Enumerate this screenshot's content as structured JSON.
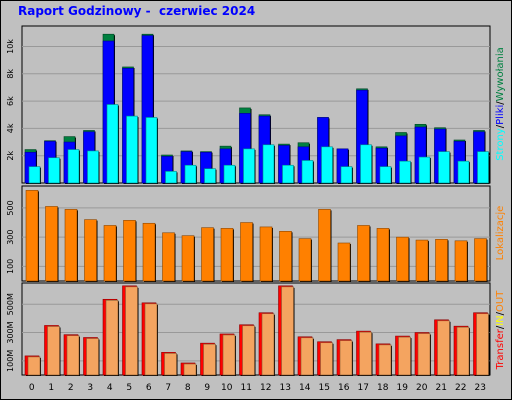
{
  "title": "Raport Godzinowy -  czerwiec 2024",
  "colors": {
    "background": "#c0c0c0",
    "plot_bg": "#c0c0c0",
    "grid": "#999999",
    "title": "#0000ff",
    "strony": "#00ffff",
    "pliki": "#0000ff",
    "wywolania": "#008040",
    "lokalizacje": "#ff8000",
    "transfer": "#ff0000",
    "in": "#ffff00",
    "out": "#ff8000"
  },
  "chart_data": [
    {
      "type": "bar",
      "categories": [
        "0",
        "1",
        "2",
        "3",
        "4",
        "5",
        "6",
        "7",
        "8",
        "9",
        "10",
        "11",
        "12",
        "13",
        "14",
        "15",
        "16",
        "17",
        "18",
        "19",
        "20",
        "21",
        "22",
        "23"
      ],
      "series": [
        {
          "name": "Wywołania",
          "values": [
            2450,
            3100,
            3400,
            3850,
            10900,
            8500,
            10900,
            2050,
            2350,
            2300,
            2700,
            5500,
            5000,
            2850,
            2950,
            4800,
            2500,
            6900,
            2650,
            3700,
            4300,
            4050,
            3150,
            3850
          ]
        },
        {
          "name": "Pliki",
          "values": [
            2250,
            3050,
            3000,
            3750,
            10400,
            8400,
            10800,
            1950,
            2300,
            2250,
            2500,
            5100,
            4900,
            2750,
            2650,
            4800,
            2500,
            6800,
            2550,
            3450,
            4100,
            3950,
            3050,
            3750
          ]
        },
        {
          "name": "Strony",
          "values": [
            1200,
            1850,
            2450,
            2350,
            5750,
            4900,
            4800,
            850,
            1300,
            1050,
            1300,
            2500,
            2800,
            1300,
            1650,
            2650,
            1200,
            2800,
            1200,
            1600,
            1900,
            2300,
            1600,
            2300
          ]
        }
      ],
      "yticks": [
        2,
        4,
        6,
        8,
        10
      ],
      "ytick_labels": [
        "2k",
        "4k",
        "6k",
        "8k",
        "10k"
      ],
      "ylim": [
        0,
        11500
      ],
      "legend": [
        "Strony",
        "/",
        "Pliki",
        "/",
        "Wywołania"
      ]
    },
    {
      "type": "bar",
      "categories": [
        "0",
        "1",
        "2",
        "3",
        "4",
        "5",
        "6",
        "7",
        "8",
        "9",
        "10",
        "11",
        "12",
        "13",
        "14",
        "15",
        "16",
        "17",
        "18",
        "19",
        "20",
        "21",
        "22",
        "23"
      ],
      "series": [
        {
          "name": "Lokalizacje",
          "values": [
            620,
            510,
            490,
            420,
            380,
            415,
            395,
            330,
            310,
            365,
            360,
            400,
            370,
            340,
            290,
            490,
            260,
            380,
            360,
            300,
            280,
            285,
            275,
            290
          ]
        }
      ],
      "yticks": [
        100,
        300,
        500
      ],
      "ytick_labels": [
        "100",
        "300",
        "500"
      ],
      "ylim": [
        0,
        650
      ],
      "legend": [
        "Lokalizacje"
      ]
    },
    {
      "type": "bar",
      "categories": [
        "0",
        "1",
        "2",
        "3",
        "4",
        "5",
        "6",
        "7",
        "8",
        "9",
        "10",
        "11",
        "12",
        "13",
        "14",
        "15",
        "16",
        "17",
        "18",
        "19",
        "20",
        "21",
        "22",
        "23"
      ],
      "series": [
        {
          "name": "Transfer",
          "values": [
            135,
            350,
            285,
            265,
            535,
            630,
            510,
            160,
            85,
            225,
            290,
            355,
            440,
            630,
            270,
            235,
            250,
            310,
            220,
            275,
            300,
            390,
            345,
            440
          ]
        }
      ],
      "yticks": [
        100,
        300,
        500
      ],
      "ytick_labels": [
        "100M",
        "300M",
        "500M"
      ],
      "ylim": [
        0,
        650
      ],
      "legend": [
        "Transfer",
        "/",
        "IN",
        "/",
        "OUT"
      ]
    }
  ],
  "side_labels": {
    "top": [
      "Strony",
      "/",
      "Pliki",
      "/",
      "Wywołania"
    ],
    "middle": [
      "Lokalizacje"
    ],
    "bottom": [
      "Transfer",
      "/",
      "IN",
      "/",
      "OUT"
    ]
  }
}
